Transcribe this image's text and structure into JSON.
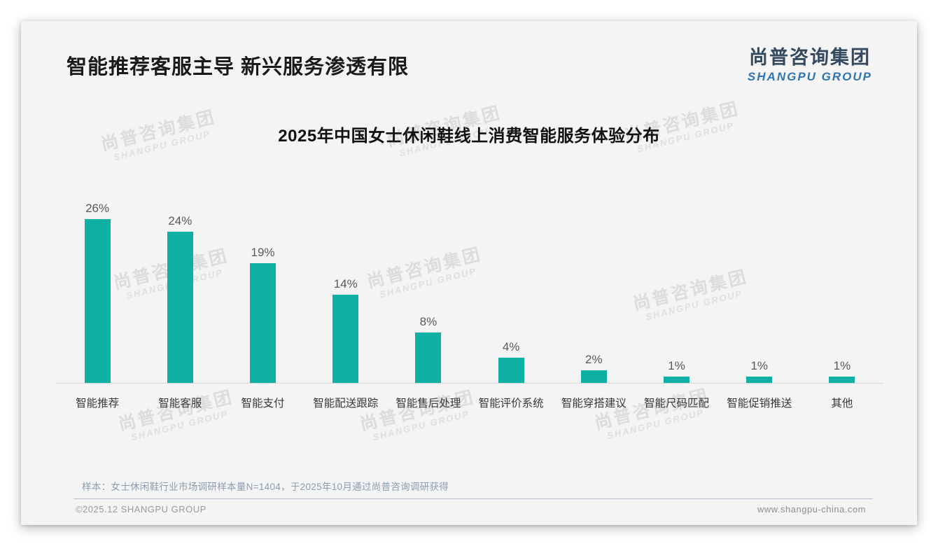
{
  "page": {
    "header": {
      "title": "智能推荐客服主导 新兴服务渗透有限"
    },
    "logo": {
      "cn": "尚普咨询集团",
      "en": "SHANGPU GROUP"
    },
    "watermark": {
      "cn": "尚普咨询集团",
      "en": "SHANGPU GROUP"
    },
    "note": "样本：女士休闲鞋行业市场调研样本量N=1404，于2025年10月通过尚普咨询调研获得",
    "footer": {
      "copyright": "©2025.12 SHANGPU GROUP",
      "website": "www.shangpu-china.com"
    },
    "colors": {
      "accent_teal": "#0eb0a6",
      "logo_navy": "#34495e",
      "logo_blue": "#2e75b6",
      "slide_background": "#f4f4f5"
    }
  },
  "chart_data": {
    "type": "bar",
    "title": "2025年中国女士休闲鞋线上消费智能服务体验分布",
    "categories": [
      "智能推荐",
      "智能客服",
      "智能支付",
      "智能配送跟踪",
      "智能售后处理",
      "智能评价系统",
      "智能穿搭建议",
      "智能尺码匹配",
      "智能促销推送",
      "其他"
    ],
    "values": [
      26,
      24,
      19,
      14,
      8,
      4,
      2,
      1,
      1,
      1
    ],
    "value_labels": [
      "26%",
      "24%",
      "19%",
      "14%",
      "8%",
      "4%",
      "2%",
      "1%",
      "1%",
      "1%"
    ],
    "bar_color": "#0eb0a6",
    "xlabel": "",
    "ylabel": "",
    "ylim": [
      0,
      30
    ],
    "yaxis_visible": false,
    "grid": false,
    "legend": false,
    "data_labels": "percent above each bar"
  }
}
